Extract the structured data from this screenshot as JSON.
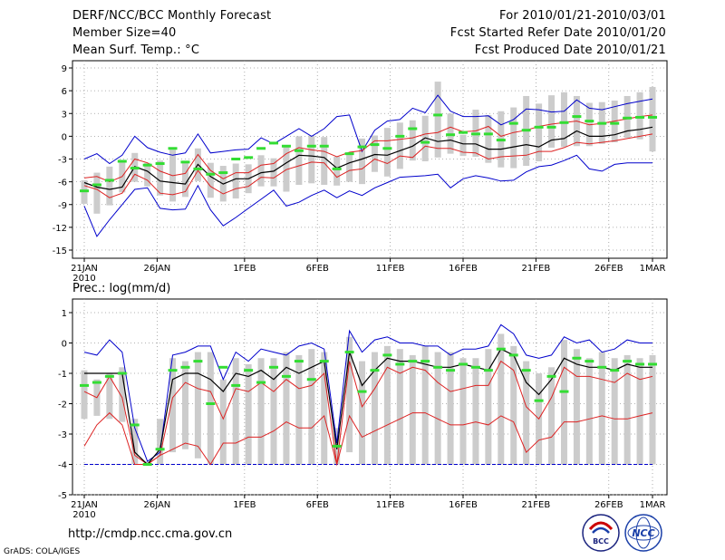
{
  "header": {
    "title": "DERF/NCC/BCC Monthly Forecast",
    "member_size": "Member Size=40",
    "variable": "Mean Surf. Temp.: °C",
    "period": "For 2010/01/21-2010/03/01",
    "started": "Fcst Started Refer Date 2010/01/20",
    "produced": "Fcst Produced Date 2010/01/21"
  },
  "footer": {
    "url": "http://cmdp.ncc.cma.gov.cn",
    "credit": "GrADS: COLA/IGES",
    "logo_bcc": "BCC",
    "logo_ncc": "NCC"
  },
  "colors": {
    "box": "#cccccc",
    "obs": "#33dd33",
    "mean": "#000000",
    "inner": "#dd2222",
    "outer": "#0000cc",
    "frame": "#000000"
  },
  "chart_data": [
    {
      "type": "line",
      "title": "Mean Surf. Temp.: °C",
      "ylabel": "°C",
      "ylim": [
        -16.5,
        10.5
      ],
      "yticks": [
        "9",
        "6",
        "3",
        "0",
        "-3",
        "-6",
        "-9",
        "-12",
        "-15"
      ],
      "x_ticks": [
        {
          "day": 0,
          "label": "21JAN",
          "sub": "2010"
        },
        {
          "day": 5,
          "label": "26JAN"
        },
        {
          "day": 11,
          "label": "1FEB"
        },
        {
          "day": 16,
          "label": "6FEB"
        },
        {
          "day": 21,
          "label": "11FEB"
        },
        {
          "day": 26,
          "label": "16FEB"
        },
        {
          "day": 31,
          "label": "21FEB"
        },
        {
          "day": 36,
          "label": "26FEB"
        },
        {
          "day": 39,
          "label": "1MAR"
        }
      ],
      "series": [
        {
          "name": "ensemble max",
          "role": "outer",
          "values": [
            -3,
            -2.3,
            -3.6,
            -2.5,
            0,
            -1.5,
            -2.1,
            -2.5,
            -2.2,
            0.3,
            -2.2,
            -2,
            -1.8,
            -1.7,
            -0.2,
            -1,
            0,
            1,
            0,
            1,
            2.6,
            2.8,
            -2,
            0.8,
            2,
            2.2,
            3.7,
            3.1,
            5.4,
            3.3,
            2.6,
            2.6,
            2.7,
            1.5,
            2.2,
            3.6,
            3.5,
            3.2,
            3.3,
            4.8,
            3.7,
            3.5,
            3.9,
            4.3,
            4.6,
            4.9
          ]
        },
        {
          "name": "inner upper",
          "role": "inner",
          "values": [
            -5.5,
            -5.3,
            -6,
            -5.3,
            -3,
            -3.5,
            -4.6,
            -5.2,
            -4.9,
            -2.4,
            -4.5,
            -5.6,
            -4.8,
            -4.8,
            -3.8,
            -3.6,
            -2.3,
            -1.5,
            -1.8,
            -2,
            -2.7,
            -2.1,
            -1.9,
            -0.6,
            -0.6,
            -0.4,
            -0.2,
            0.3,
            0.5,
            1.2,
            0.6,
            0.7,
            1.3,
            0,
            0.5,
            0.8,
            1.3,
            1.6,
            1.8,
            2,
            1.5,
            1.7,
            2,
            2.3,
            2.6,
            2.8
          ]
        },
        {
          "name": "ensemble mean",
          "role": "mean",
          "values": [
            -6.1,
            -6.7,
            -7,
            -6.7,
            -4,
            -4.6,
            -5.9,
            -6.1,
            -6.3,
            -3.7,
            -5.3,
            -6.3,
            -5.6,
            -5.6,
            -4.8,
            -4.6,
            -3.5,
            -2.5,
            -2.6,
            -2.8,
            -4.2,
            -3.5,
            -3,
            -2.4,
            -2.5,
            -1.9,
            -1.3,
            -0.2,
            -0.7,
            -0.5,
            -1,
            -1,
            -1.7,
            -1.7,
            -1.4,
            -1.1,
            -1.4,
            -0.5,
            -0.3,
            0.7,
            0,
            0,
            0.2,
            0.7,
            0.9,
            1.2
          ]
        },
        {
          "name": "inner lower",
          "role": "inner",
          "values": [
            -6.5,
            -7,
            -8.1,
            -7.5,
            -5,
            -5.8,
            -7.5,
            -7.7,
            -7.3,
            -4.5,
            -6.6,
            -7.6,
            -6.9,
            -6.6,
            -5.4,
            -5.5,
            -4.4,
            -3.9,
            -3.4,
            -3.5,
            -5.4,
            -4.5,
            -4.3,
            -3,
            -3.6,
            -2.6,
            -2.8,
            -1.3,
            -1.6,
            -1.6,
            -2.1,
            -2.2,
            -3,
            -2.7,
            -2.6,
            -2.5,
            -2,
            -2,
            -1.5,
            -0.8,
            -1,
            -0.8,
            -0.6,
            -0.3,
            0,
            0.3
          ]
        },
        {
          "name": "ensemble min",
          "role": "outer",
          "values": [
            -9.2,
            -13.2,
            -11,
            -9,
            -7,
            -6.8,
            -9.5,
            -9.7,
            -9.6,
            -6.5,
            -9.7,
            -11.8,
            -10.7,
            -9.5,
            -8.3,
            -7.1,
            -9.2,
            -8.7,
            -7.8,
            -7.1,
            -8.1,
            -7.2,
            -7.8,
            -6.8,
            -6.1,
            -5.4,
            -5.3,
            -5.2,
            -5,
            -6.8,
            -5.6,
            -5.2,
            -5.5,
            -5.9,
            -5.8,
            -4.7,
            -4,
            -3.8,
            -3.2,
            -2.5,
            -4.3,
            -4.6,
            -3.7,
            -3.5,
            -3.5,
            -3.5
          ]
        },
        {
          "name": "box top",
          "role": "box",
          "values": [
            -5.8,
            -4.8,
            -4,
            -3.4,
            -2.2,
            -3.5,
            -3.2,
            -1.8,
            -3.4,
            -1.6,
            -3.5,
            -3.9,
            -3.6,
            -3.7,
            -2.5,
            -2.9,
            -1.4,
            0,
            0.1,
            -0.1,
            -2.7,
            -2.2,
            -0.3,
            0.1,
            1.1,
            1.8,
            2.1,
            2.7,
            7.2,
            3,
            0.2,
            3.5,
            2.8,
            3.3,
            3.8,
            5.3,
            4.3,
            5.4,
            5.8,
            5.3,
            4.4,
            4.5,
            4.7,
            5.3,
            5.8,
            6.5
          ]
        },
        {
          "name": "box bottom",
          "role": "box",
          "values": [
            -8.9,
            -10.2,
            -9.1,
            -7.4,
            -6,
            -6.6,
            -7.8,
            -8.6,
            -8,
            -5.9,
            -8.1,
            -8.6,
            -8.2,
            -7.5,
            -6.6,
            -6.6,
            -7.3,
            -6.4,
            -6.2,
            -6.4,
            -6.5,
            -6,
            -6.3,
            -4.7,
            -5.3,
            -4.3,
            -3.2,
            -3.3,
            -2.8,
            -2.3,
            -2.6,
            -2.7,
            -3.5,
            -4.1,
            -4.2,
            -3.9,
            -3.3,
            -1.5,
            -1.4,
            -1.3,
            -1.3,
            -1,
            -0.8,
            -0.2,
            -0.4,
            -2
          ]
        },
        {
          "name": "observed",
          "role": "obs",
          "values": [
            -7.2,
            -6.4,
            -5.8,
            -3.3,
            -4.2,
            -3.8,
            -3.6,
            -1.6,
            -3.4,
            -4.3,
            -5,
            -4.8,
            -3,
            -2.8,
            -1.6,
            -0.9,
            -1.3,
            -1.9,
            -1.3,
            -1.3,
            -4.3,
            -2.3,
            -1.4,
            -1.1,
            -1.6,
            0,
            1,
            -0.8,
            2.8,
            0.2,
            0.5,
            0.3,
            0.3,
            -0.5,
            1.7,
            0.8,
            1.2,
            1.2,
            1.8,
            2.6,
            2,
            1.7,
            1.7,
            2.4,
            2.5,
            2.5
          ]
        }
      ]
    },
    {
      "type": "line",
      "title": "Prec.: log(mm/d)",
      "ylabel": "log(mm/d)",
      "ylim": [
        -5,
        1.3
      ],
      "yticks": [
        "1",
        "0",
        "-1",
        "-2",
        "-3",
        "-4",
        "-5"
      ],
      "x_ticks": [
        {
          "day": 0,
          "label": "21JAN",
          "sub": "2010"
        },
        {
          "day": 5,
          "label": "26JAN"
        },
        {
          "day": 11,
          "label": "1FEB"
        },
        {
          "day": 16,
          "label": "6FEB"
        },
        {
          "day": 21,
          "label": "11FEB"
        },
        {
          "day": 26,
          "label": "16FEB"
        },
        {
          "day": 31,
          "label": "21FEB"
        },
        {
          "day": 36,
          "label": "26FEB"
        },
        {
          "day": 39,
          "label": "1MAR"
        }
      ],
      "series": [
        {
          "name": "ensemble max",
          "role": "outer",
          "values": [
            -0.3,
            -0.4,
            0.1,
            -0.3,
            -2.8,
            -3.9,
            -3.6,
            -0.4,
            -0.3,
            -0.1,
            -0.1,
            -1.2,
            -0.3,
            -0.6,
            -0.2,
            -0.3,
            -0.4,
            -0.1,
            0,
            -0.2,
            -3.3,
            0.4,
            -0.3,
            0.1,
            0.2,
            0,
            0,
            -0.1,
            -0.1,
            -0.4,
            -0.2,
            -0.2,
            -0.1,
            0.6,
            0.3,
            -0.4,
            -0.5,
            -0.4,
            0.2,
            0,
            0.1,
            -0.3,
            -0.2,
            0.1,
            0,
            0
          ]
        },
        {
          "name": "ensemble mean",
          "role": "mean",
          "values": [
            -1,
            -1,
            -1,
            -1,
            -3.6,
            -4,
            -3.5,
            -1.2,
            -1,
            -1,
            -1.2,
            -1.6,
            -1,
            -1.1,
            -0.9,
            -1.2,
            -0.8,
            -1,
            -0.8,
            -0.6,
            -3.5,
            -0.3,
            -1.4,
            -0.9,
            -0.5,
            -0.6,
            -0.6,
            -0.7,
            -0.8,
            -0.8,
            -0.7,
            -0.8,
            -0.9,
            -0.2,
            -0.4,
            -1.3,
            -1.7,
            -1.2,
            -0.5,
            -0.7,
            -0.8,
            -0.8,
            -0.9,
            -0.7,
            -0.8,
            -0.8
          ]
        },
        {
          "name": "inner",
          "role": "inner",
          "values": [
            -1.6,
            -1.8,
            -1.1,
            -1.8,
            -3.7,
            -4,
            -3.7,
            -1.8,
            -1.3,
            -1.5,
            -1.6,
            -2.5,
            -1.5,
            -1.6,
            -1.3,
            -1.6,
            -1.2,
            -1.5,
            -1.4,
            -1,
            -4,
            -0.6,
            -2.1,
            -1.5,
            -0.8,
            -1,
            -0.8,
            -0.9,
            -1.3,
            -1.6,
            -1.5,
            -1.4,
            -1.4,
            -0.6,
            -0.9,
            -2.1,
            -2.5,
            -1.8,
            -0.8,
            -1.1,
            -1.1,
            -1.2,
            -1.3,
            -1.0,
            -1.2,
            -1.1
          ]
        },
        {
          "name": "ensemble min (lower)",
          "role": "inner",
          "values": [
            -3.4,
            -2.7,
            -2.3,
            -2.7,
            -4,
            -4,
            -3.7,
            -3.5,
            -3.3,
            -3.4,
            -4,
            -3.3,
            -3.3,
            -3.1,
            -3.1,
            -2.9,
            -2.6,
            -2.8,
            -2.8,
            -2.4,
            -4,
            -2.4,
            -3.1,
            -2.9,
            -2.7,
            -2.5,
            -2.3,
            -2.3,
            -2.5,
            -2.7,
            -2.7,
            -2.6,
            -2.7,
            -2.4,
            -2.6,
            -3.6,
            -3.2,
            -3.1,
            -2.6,
            -2.6,
            -2.5,
            -2.4,
            -2.5,
            -2.5,
            -2.4,
            -2.3
          ]
        },
        {
          "name": "box top",
          "role": "box",
          "values": [
            -0.9,
            -1.2,
            -1,
            -0.8,
            -2.5,
            -3.9,
            -2.5,
            -0.5,
            -0.6,
            -0.3,
            -0.3,
            -1.2,
            -0.5,
            -0.7,
            -0.5,
            -0.5,
            -0.3,
            -0.4,
            -0.2,
            -0.3,
            -2.8,
            0.2,
            -0.6,
            -0.3,
            -0.1,
            -0.2,
            -0.4,
            -0.1,
            -0.3,
            -0.3,
            -0.5,
            -0.5,
            -0.2,
            0.3,
            -0.1,
            -0.6,
            -1,
            -0.8,
            0.1,
            -0.2,
            -0.5,
            -0.3,
            -0.5,
            -0.4,
            -0.5,
            -0.4
          ]
        },
        {
          "name": "box bottom",
          "role": "box",
          "values": [
            -2.5,
            -2.4,
            -2.5,
            -2.6,
            -4,
            -4,
            -4,
            -3.6,
            -3.5,
            -3.8,
            -4,
            -4,
            -4,
            -4,
            -4,
            -4,
            -4,
            -4,
            -4,
            -4,
            -4,
            -3.6,
            -4,
            -4,
            -4,
            -4,
            -4,
            -4,
            -4,
            -4,
            -4,
            -4,
            -4,
            -4,
            -4,
            -4,
            -4,
            -4,
            -4,
            -4,
            -4,
            -4,
            -4,
            -4,
            -4,
            -4
          ]
        },
        {
          "name": "zero floor",
          "role": "outer",
          "values": [
            -4,
            -4,
            -4,
            -4,
            -4,
            -4,
            -4,
            -4,
            -4,
            -4,
            -4,
            -4,
            -4,
            -4,
            -4,
            -4,
            -4,
            -4,
            -4,
            -4,
            -4,
            -4,
            -4,
            -4,
            -4,
            -4,
            -4,
            -4,
            -4,
            -4,
            -4,
            -4,
            -4,
            -4,
            -4,
            -4,
            -4,
            -4,
            -4,
            -4,
            -4,
            -4,
            -4,
            -4,
            -4,
            -4
          ]
        },
        {
          "name": "observed",
          "role": "obs",
          "values": [
            -1.4,
            -1.3,
            -1.1,
            -1,
            -2.7,
            -4,
            -3.5,
            -0.9,
            -0.8,
            -0.6,
            -2,
            -0.8,
            -1.4,
            -0.9,
            -1.3,
            -0.8,
            -1.1,
            -0.6,
            -1.2,
            -0.6,
            -3.4,
            -0.3,
            -1.6,
            -0.9,
            -0.4,
            -0.7,
            -0.6,
            -0.6,
            -0.8,
            -0.9,
            -0.7,
            -0.8,
            -0.9,
            -0.2,
            -0.4,
            -0.9,
            -1.9,
            -1.1,
            -1.6,
            -0.5,
            -0.6,
            -0.8,
            -0.9,
            -0.6,
            -0.7,
            -0.7
          ]
        }
      ]
    }
  ]
}
